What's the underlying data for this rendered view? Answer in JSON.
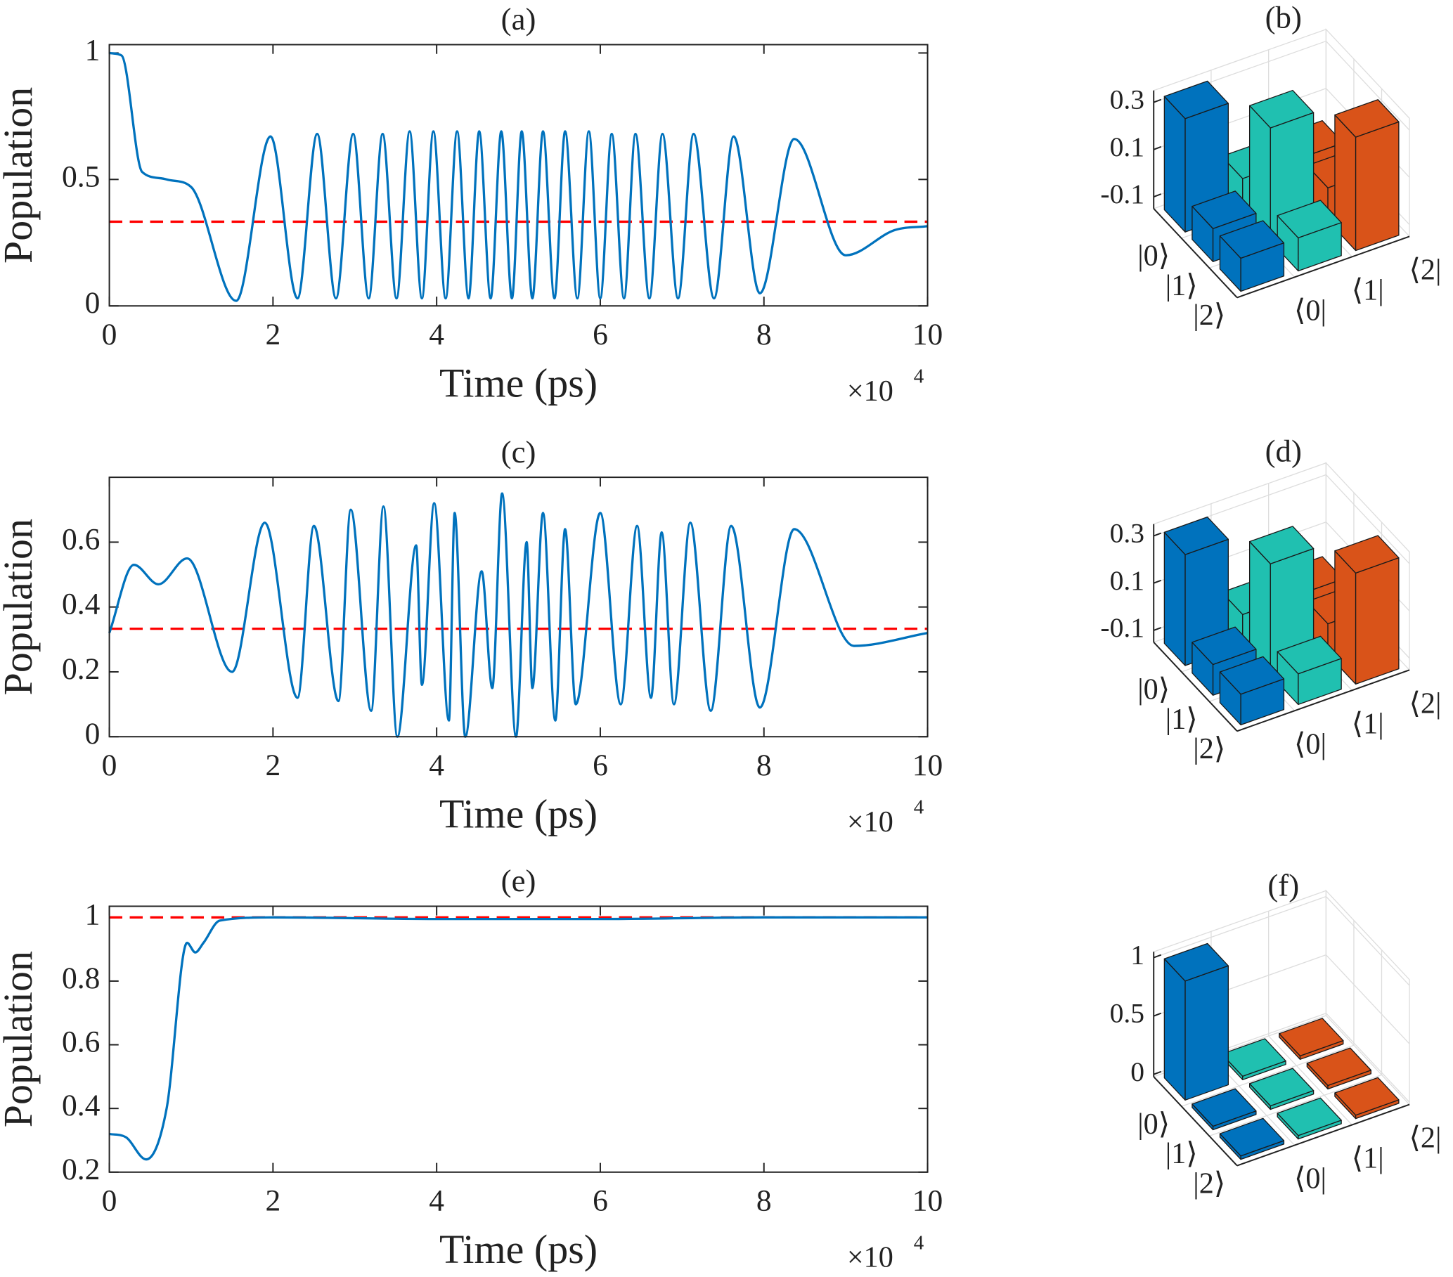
{
  "chart_data": [
    {
      "type": "line",
      "title": "(a)",
      "xlabel": "Time (ps)",
      "ylabel": "Population",
      "x_multiplier": "×10",
      "x_multiplier_exponent": "4",
      "xlim": [
        0,
        10
      ],
      "xticks": [
        0,
        2,
        4,
        6,
        8,
        10
      ],
      "ylim": [
        0,
        1.033
      ],
      "yticks": [
        0,
        0.5,
        1
      ],
      "color": "#0072bd",
      "x": [
        0,
        0.15,
        0.4,
        0.7,
        1.0,
        1.55,
        1.97,
        2.3,
        2.54,
        2.77,
        2.98,
        3.17,
        3.34,
        3.51,
        3.67,
        3.82,
        3.96,
        4.11,
        4.25,
        4.39,
        4.52,
        4.66,
        4.79,
        4.92,
        5.04,
        5.17,
        5.3,
        5.44,
        5.57,
        5.72,
        5.86,
        6.0,
        6.14,
        6.29,
        6.43,
        6.6,
        6.76,
        6.95,
        7.14,
        7.39,
        7.63,
        7.95,
        8.37,
        9.0,
        9.6,
        10
      ],
      "values": [
        1,
        0.99,
        0.53,
        0.5,
        0.47,
        0.02,
        0.67,
        0.03,
        0.68,
        0.03,
        0.68,
        0.03,
        0.68,
        0.03,
        0.69,
        0.03,
        0.69,
        0.03,
        0.69,
        0.03,
        0.69,
        0.03,
        0.69,
        0.03,
        0.69,
        0.03,
        0.69,
        0.03,
        0.69,
        0.03,
        0.69,
        0.03,
        0.68,
        0.03,
        0.68,
        0.03,
        0.68,
        0.03,
        0.68,
        0.03,
        0.67,
        0.05,
        0.66,
        0.2,
        0.3,
        0.315
      ],
      "hline": {
        "value": 0.333,
        "color": "#ff0000",
        "style": "dashed"
      }
    },
    {
      "type": "bar3d",
      "title": "(b)",
      "row_labels": [
        "|0⟩",
        "|1⟩",
        "|2⟩"
      ],
      "col_labels": [
        "⟨0|",
        "⟨1|",
        "⟨2|"
      ],
      "colors": [
        "#0072bd",
        "#20c0b0",
        "#d95319"
      ],
      "zlim": [
        -0.15,
        0.35
      ],
      "zticks": [
        -0.1,
        0.1,
        0.3
      ],
      "values": [
        [
          0.33,
          -0.01,
          -0.01
        ],
        [
          -0.01,
          0.33,
          -0.01
        ],
        [
          -0.01,
          -0.01,
          0.33
        ]
      ]
    },
    {
      "type": "line",
      "title": "(c)",
      "xlabel": "Time (ps)",
      "ylabel": "Population",
      "x_multiplier": "×10",
      "x_multiplier_exponent": "4",
      "xlim": [
        0,
        10
      ],
      "xticks": [
        0,
        2,
        4,
        6,
        8,
        10
      ],
      "ylim": [
        0,
        0.8
      ],
      "yticks": [
        0,
        0.2,
        0.4,
        0.6
      ],
      "color": "#0072bd",
      "x": [
        0,
        0.3,
        0.6,
        0.95,
        1.5,
        1.9,
        2.3,
        2.5,
        2.8,
        2.95,
        3.2,
        3.35,
        3.52,
        3.75,
        3.82,
        3.97,
        4.15,
        4.22,
        4.35,
        4.55,
        4.68,
        4.8,
        4.97,
        5.1,
        5.17,
        5.3,
        5.45,
        5.57,
        5.7,
        6.0,
        6.25,
        6.45,
        6.62,
        6.75,
        6.9,
        7.1,
        7.35,
        7.6,
        7.95,
        8.37,
        9.1,
        10
      ],
      "values": [
        0.32,
        0.53,
        0.47,
        0.55,
        0.2,
        0.66,
        0.12,
        0.65,
        0.11,
        0.7,
        0.08,
        0.71,
        0.0,
        0.59,
        0.16,
        0.72,
        0.05,
        0.69,
        0.0,
        0.51,
        0.15,
        0.75,
        0.0,
        0.6,
        0.15,
        0.69,
        0.05,
        0.64,
        0.1,
        0.69,
        0.1,
        0.65,
        0.12,
        0.63,
        0.1,
        0.66,
        0.08,
        0.65,
        0.09,
        0.64,
        0.28,
        0.32
      ],
      "hline": {
        "value": 0.333,
        "color": "#ff0000",
        "style": "dashed"
      }
    },
    {
      "type": "bar3d",
      "title": "(d)",
      "row_labels": [
        "|0⟩",
        "|1⟩",
        "|2⟩"
      ],
      "col_labels": [
        "⟨0|",
        "⟨1|",
        "⟨2|"
      ],
      "colors": [
        "#0072bd",
        "#20c0b0",
        "#d95319"
      ],
      "zlim": [
        -0.15,
        0.35
      ],
      "zticks": [
        -0.1,
        0.1,
        0.3
      ],
      "values": [
        [
          0.32,
          -0.02,
          -0.02
        ],
        [
          -0.02,
          0.32,
          -0.02
        ],
        [
          -0.02,
          -0.02,
          0.32
        ]
      ]
    },
    {
      "type": "line",
      "title": "(e)",
      "xlabel": "Time (ps)",
      "ylabel": "Population",
      "x_multiplier": "×10",
      "x_multiplier_exponent": "4",
      "xlim": [
        0,
        10
      ],
      "xticks": [
        0,
        2,
        4,
        6,
        8,
        10
      ],
      "ylim": [
        0.2,
        1.035
      ],
      "yticks": [
        0.2,
        0.4,
        0.6,
        0.8,
        1
      ],
      "color": "#0072bd",
      "x": [
        0,
        0.2,
        0.45,
        0.7,
        0.95,
        1.05,
        1.15,
        1.35,
        2,
        4,
        6,
        8,
        10
      ],
      "values": [
        0.32,
        0.31,
        0.24,
        0.4,
        0.92,
        0.89,
        0.92,
        0.99,
        1,
        0.995,
        0.995,
        1,
        1
      ],
      "hline": {
        "value": 1,
        "color": "#ff0000",
        "style": "dashed"
      }
    },
    {
      "type": "bar3d",
      "title": "(f)",
      "row_labels": [
        "|0⟩",
        "|1⟩",
        "|2⟩"
      ],
      "col_labels": [
        "⟨0|",
        "⟨1|",
        "⟨2|"
      ],
      "colors": [
        "#0072bd",
        "#20c0b0",
        "#d95319"
      ],
      "zlim": [
        -0.02,
        1.05
      ],
      "zticks": [
        0,
        0.5,
        1
      ],
      "values": [
        [
          1,
          0.01,
          0.01
        ],
        [
          0.01,
          0.01,
          0.01
        ],
        [
          0.01,
          0.01,
          0.01
        ]
      ]
    }
  ]
}
